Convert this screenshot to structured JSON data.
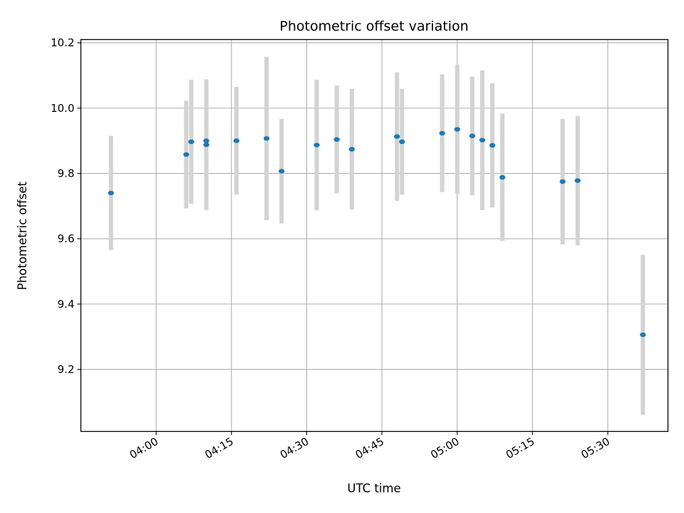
{
  "chart_data": {
    "type": "scatter",
    "title": "Photometric offset variation",
    "xlabel": "UTC time",
    "ylabel": "Photometric offset",
    "x_tick_labels": [
      "04:00",
      "04:15",
      "04:30",
      "04:45",
      "05:00",
      "05:15",
      "05:30"
    ],
    "y_tick_labels": [
      "9.2",
      "9.4",
      "9.6",
      "9.8",
      "10.0",
      "10.2"
    ],
    "xlim": [
      "03:45",
      "05:42"
    ],
    "ylim": [
      9.01,
      10.21
    ],
    "grid": true,
    "marker_color": "#1f77b4",
    "errorbar_color": "#d3d3d3",
    "points": [
      {
        "x": "03:51",
        "y": 9.74,
        "yerr": 0.175
      },
      {
        "x": "04:06",
        "y": 9.858,
        "yerr": 0.165
      },
      {
        "x": "04:07",
        "y": 9.897,
        "yerr": 0.19
      },
      {
        "x": "04:10",
        "y": 9.9,
        "yerr": 0.17
      },
      {
        "x": "04:10",
        "y": 9.888,
        "yerr": 0.2
      },
      {
        "x": "04:16",
        "y": 9.9,
        "yerr": 0.165
      },
      {
        "x": "04:22",
        "y": 9.907,
        "yerr": 0.25
      },
      {
        "x": "04:25",
        "y": 9.807,
        "yerr": 0.16
      },
      {
        "x": "04:32",
        "y": 9.887,
        "yerr": 0.2
      },
      {
        "x": "04:36",
        "y": 9.904,
        "yerr": 0.165
      },
      {
        "x": "04:39",
        "y": 9.874,
        "yerr": 0.185
      },
      {
        "x": "04:48",
        "y": 9.913,
        "yerr": 0.197
      },
      {
        "x": "04:49",
        "y": 9.897,
        "yerr": 0.162
      },
      {
        "x": "04:57",
        "y": 9.923,
        "yerr": 0.18
      },
      {
        "x": "05:00",
        "y": 9.935,
        "yerr": 0.198
      },
      {
        "x": "05:03",
        "y": 9.915,
        "yerr": 0.182
      },
      {
        "x": "05:05",
        "y": 9.902,
        "yerr": 0.214
      },
      {
        "x": "05:07",
        "y": 9.886,
        "yerr": 0.19
      },
      {
        "x": "05:09",
        "y": 9.788,
        "yerr": 0.195
      },
      {
        "x": "05:21",
        "y": 9.775,
        "yerr": 0.192
      },
      {
        "x": "05:24",
        "y": 9.778,
        "yerr": 0.198
      },
      {
        "x": "05:37",
        "y": 9.306,
        "yerr": 0.245
      }
    ]
  }
}
